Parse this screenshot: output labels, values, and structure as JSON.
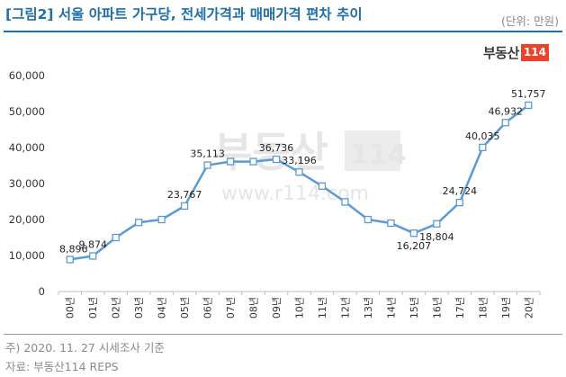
{
  "header": {
    "title": "[그림2] 서울 아파트 가구당, 전세가격과 매매가격 편차 추이",
    "unit": "(단위: 만원)"
  },
  "logo": {
    "text": "부동산",
    "badge": "114"
  },
  "watermark": {
    "line1": "부동산",
    "badge": "114",
    "url": "www.r114.com"
  },
  "footer": {
    "note1": "주) 2020. 11. 27 시세조사 기준",
    "note2": "자료: 부동산114 REPS"
  },
  "chart_data": {
    "type": "line",
    "categories": [
      "00년",
      "01년",
      "02년",
      "03년",
      "04년",
      "05년",
      "06년",
      "07년",
      "08년",
      "09년",
      "10년",
      "11년",
      "12년",
      "13년",
      "14년",
      "15년",
      "16년",
      "17년",
      "18년",
      "19년",
      "20년"
    ],
    "values": [
      8896,
      9874,
      15000,
      19200,
      20000,
      23767,
      35113,
      36100,
      36100,
      36736,
      33196,
      29300,
      24900,
      20000,
      19000,
      16207,
      18804,
      24724,
      40035,
      46932,
      51757
    ],
    "data_labels": [
      "8,896",
      "9,874",
      null,
      null,
      null,
      "23,767",
      "35,113",
      null,
      null,
      "36,736",
      "33,196",
      null,
      null,
      null,
      null,
      "16,207",
      "18,804",
      "24,724",
      "40,035",
      "46,932",
      "51,757"
    ],
    "yticks": [
      "0",
      "10,000",
      "20,000",
      "30,000",
      "40,000",
      "50,000",
      "60,000"
    ],
    "ylim": [
      0,
      60000
    ],
    "grid": false,
    "line_color": "#5b9bd5"
  }
}
